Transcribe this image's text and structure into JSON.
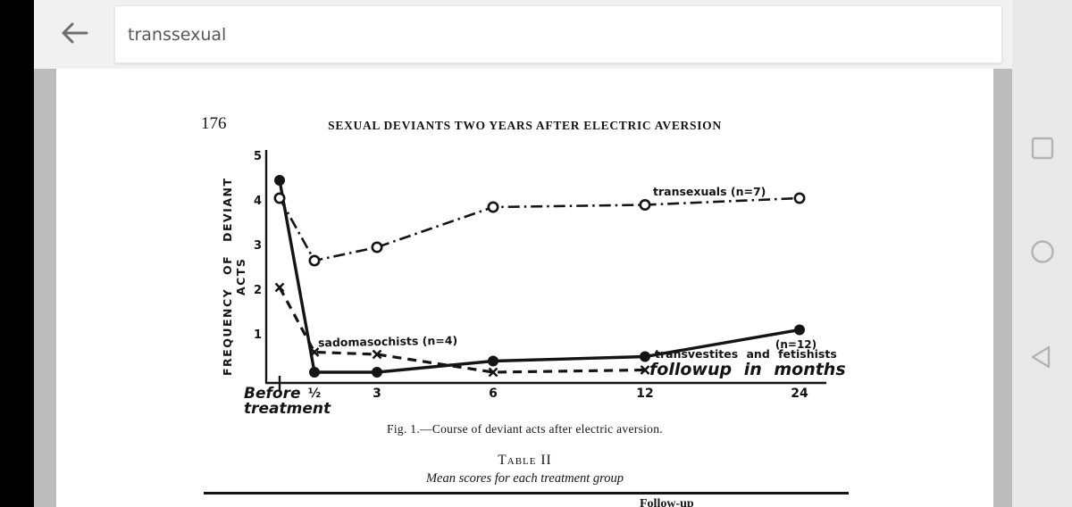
{
  "colors": {
    "chrome_black": "#000000",
    "toolbar_bg": "#f1f1f1",
    "navbar_bg": "#e9e9e9",
    "viewer_bg": "#bcbcbc",
    "page_bg": "#ffffff",
    "ink": "#141414",
    "search_text": "#575757",
    "icon_gray": "#6e6e6e",
    "nav_icon": "#b3b3b3"
  },
  "toolbar": {
    "search_query": "transsexual"
  },
  "page": {
    "page_number": "176",
    "running_title": "SEXUAL DEVIANTS TWO YEARS AFTER ELECTRIC AVERSION",
    "figure_caption": "Fig. 1.—Course of deviant acts after electric aversion.",
    "table_title": "Table II",
    "table_subtitle": "Mean scores for each treatment group",
    "table_partial_column_header": "Follow-up"
  },
  "chart_data": {
    "type": "line",
    "title": "Fig. 1.—Course of deviant acts after electric aversion.",
    "xlabel": "followup in months",
    "ylabel": "FREQUENCY OF DEVIANT ACTS",
    "ylim": [
      0,
      5
    ],
    "y_ticks": [
      5,
      4,
      3,
      2,
      1
    ],
    "grid": false,
    "legend_position": "inline-annotations",
    "x_categories": [
      "Before treatment",
      "½",
      "3",
      "6",
      "12",
      "24"
    ],
    "x_tick_labels": [
      "½",
      "3",
      "6",
      "12",
      "24"
    ],
    "series": [
      {
        "name": "transexuals (n=7)",
        "line_style": "dash-dot",
        "marker": "open-circle",
        "values": [
          4.1,
          2.7,
          3.0,
          3.9,
          3.95,
          4.1
        ]
      },
      {
        "name": "transvestites and fetishists (n=12)",
        "line_style": "solid",
        "marker": "filled-circle",
        "values": [
          4.5,
          0.2,
          0.2,
          0.45,
          0.55,
          1.15
        ]
      },
      {
        "name": "sadomasochists (n=4)",
        "line_style": "dashed",
        "marker": "x",
        "values": [
          2.1,
          0.65,
          0.6,
          0.2,
          0.25,
          null
        ]
      }
    ],
    "labels": {
      "transexuals": "transexuals (n=7)",
      "sadomasochists": "sadomasochists (n=4)",
      "transvestites_n": "(n=12)",
      "transvestites": "transvestites and fetishists",
      "before_line1": "Before",
      "before_line2": "treatment"
    }
  }
}
